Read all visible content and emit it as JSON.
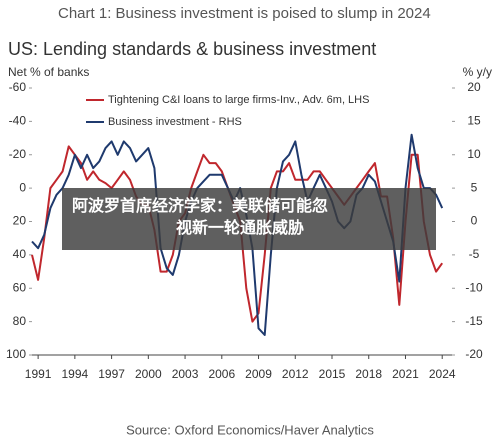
{
  "chart_data": {
    "type": "line",
    "title": "Chart 1: Business investment is poised to slump in 2024",
    "subtitle": "US: Lending standards & business investment",
    "ylabel": "Net % of banks",
    "y2label": "% y/y",
    "source": "Source: Oxford Economics/Haver Analytics",
    "overlay_text": [
      "阿波罗首席经济学家：美联储可能忽",
      "视新一轮通胀威胁"
    ],
    "x": [
      1990.5,
      1991,
      1991.5,
      1992,
      1992.5,
      1993,
      1993.5,
      1994,
      1994.5,
      1995,
      1995.5,
      1996,
      1996.5,
      1997,
      1997.5,
      1998,
      1998.5,
      1999,
      1999.5,
      2000,
      2000.5,
      2001,
      2001.5,
      2002,
      2002.5,
      2003,
      2003.5,
      2004,
      2004.5,
      2005,
      2005.5,
      2006,
      2006.5,
      2007,
      2007.5,
      2008,
      2008.5,
      2009,
      2009.5,
      2010,
      2010.5,
      2011,
      2011.5,
      2012,
      2012.5,
      2013,
      2013.5,
      2014,
      2014.5,
      2015,
      2015.5,
      2016,
      2016.5,
      2017,
      2017.5,
      2018,
      2018.5,
      2019,
      2019.5,
      2020,
      2020.5,
      2021,
      2021.5,
      2022,
      2022.5,
      2023,
      2023.5,
      2024
    ],
    "series": [
      {
        "name": "Tightening C&I loans to large firms-Inv., Adv. 6m, LHS",
        "color": "#c0272d",
        "values": [
          40,
          55,
          30,
          0,
          -5,
          -10,
          -25,
          -20,
          -15,
          -5,
          -10,
          -5,
          -3,
          0,
          -5,
          -10,
          -5,
          5,
          10,
          10,
          25,
          50,
          50,
          40,
          20,
          15,
          0,
          -10,
          -20,
          -15,
          -15,
          -10,
          0,
          10,
          20,
          60,
          80,
          75,
          40,
          0,
          -10,
          -10,
          -15,
          -5,
          -5,
          -5,
          -10,
          -10,
          -5,
          0,
          5,
          10,
          5,
          0,
          -5,
          -10,
          -15,
          5,
          5,
          30,
          70,
          20,
          -20,
          -20,
          20,
          40,
          50,
          45
        ]
      },
      {
        "name": "Business investment - RHS",
        "color": "#1f3a6e",
        "axis": "y2",
        "values": [
          -3,
          -4,
          -2,
          2,
          4,
          5,
          7,
          10,
          8,
          10,
          8,
          9,
          11,
          12,
          10,
          12,
          11,
          9,
          10,
          11,
          8,
          -4,
          -7,
          -8,
          -5,
          0,
          3,
          5,
          6,
          7,
          7,
          7,
          5,
          3,
          5,
          1,
          -4,
          -16,
          -17,
          -5,
          5,
          9,
          10,
          12,
          7,
          3,
          5,
          7,
          5,
          3,
          0,
          -1,
          0,
          4,
          5,
          7,
          6,
          3,
          0,
          -3,
          -9,
          5,
          13,
          8,
          5,
          5,
          4,
          2
        ]
      }
    ],
    "xlim": [
      1990.5,
      2024.8
    ],
    "xticks": [
      1991,
      1994,
      1997,
      2000,
      2003,
      2006,
      2009,
      2012,
      2015,
      2018,
      2021,
      2024
    ],
    "ylim": [
      100,
      -60
    ],
    "yticks": [
      -60,
      -40,
      -20,
      0,
      20,
      40,
      60,
      80,
      100
    ],
    "y2lim": [
      -20,
      20
    ],
    "y2ticks": [
      20,
      15,
      10,
      5,
      0,
      -5,
      -10,
      -15,
      -20
    ],
    "legend": "upper-left"
  }
}
